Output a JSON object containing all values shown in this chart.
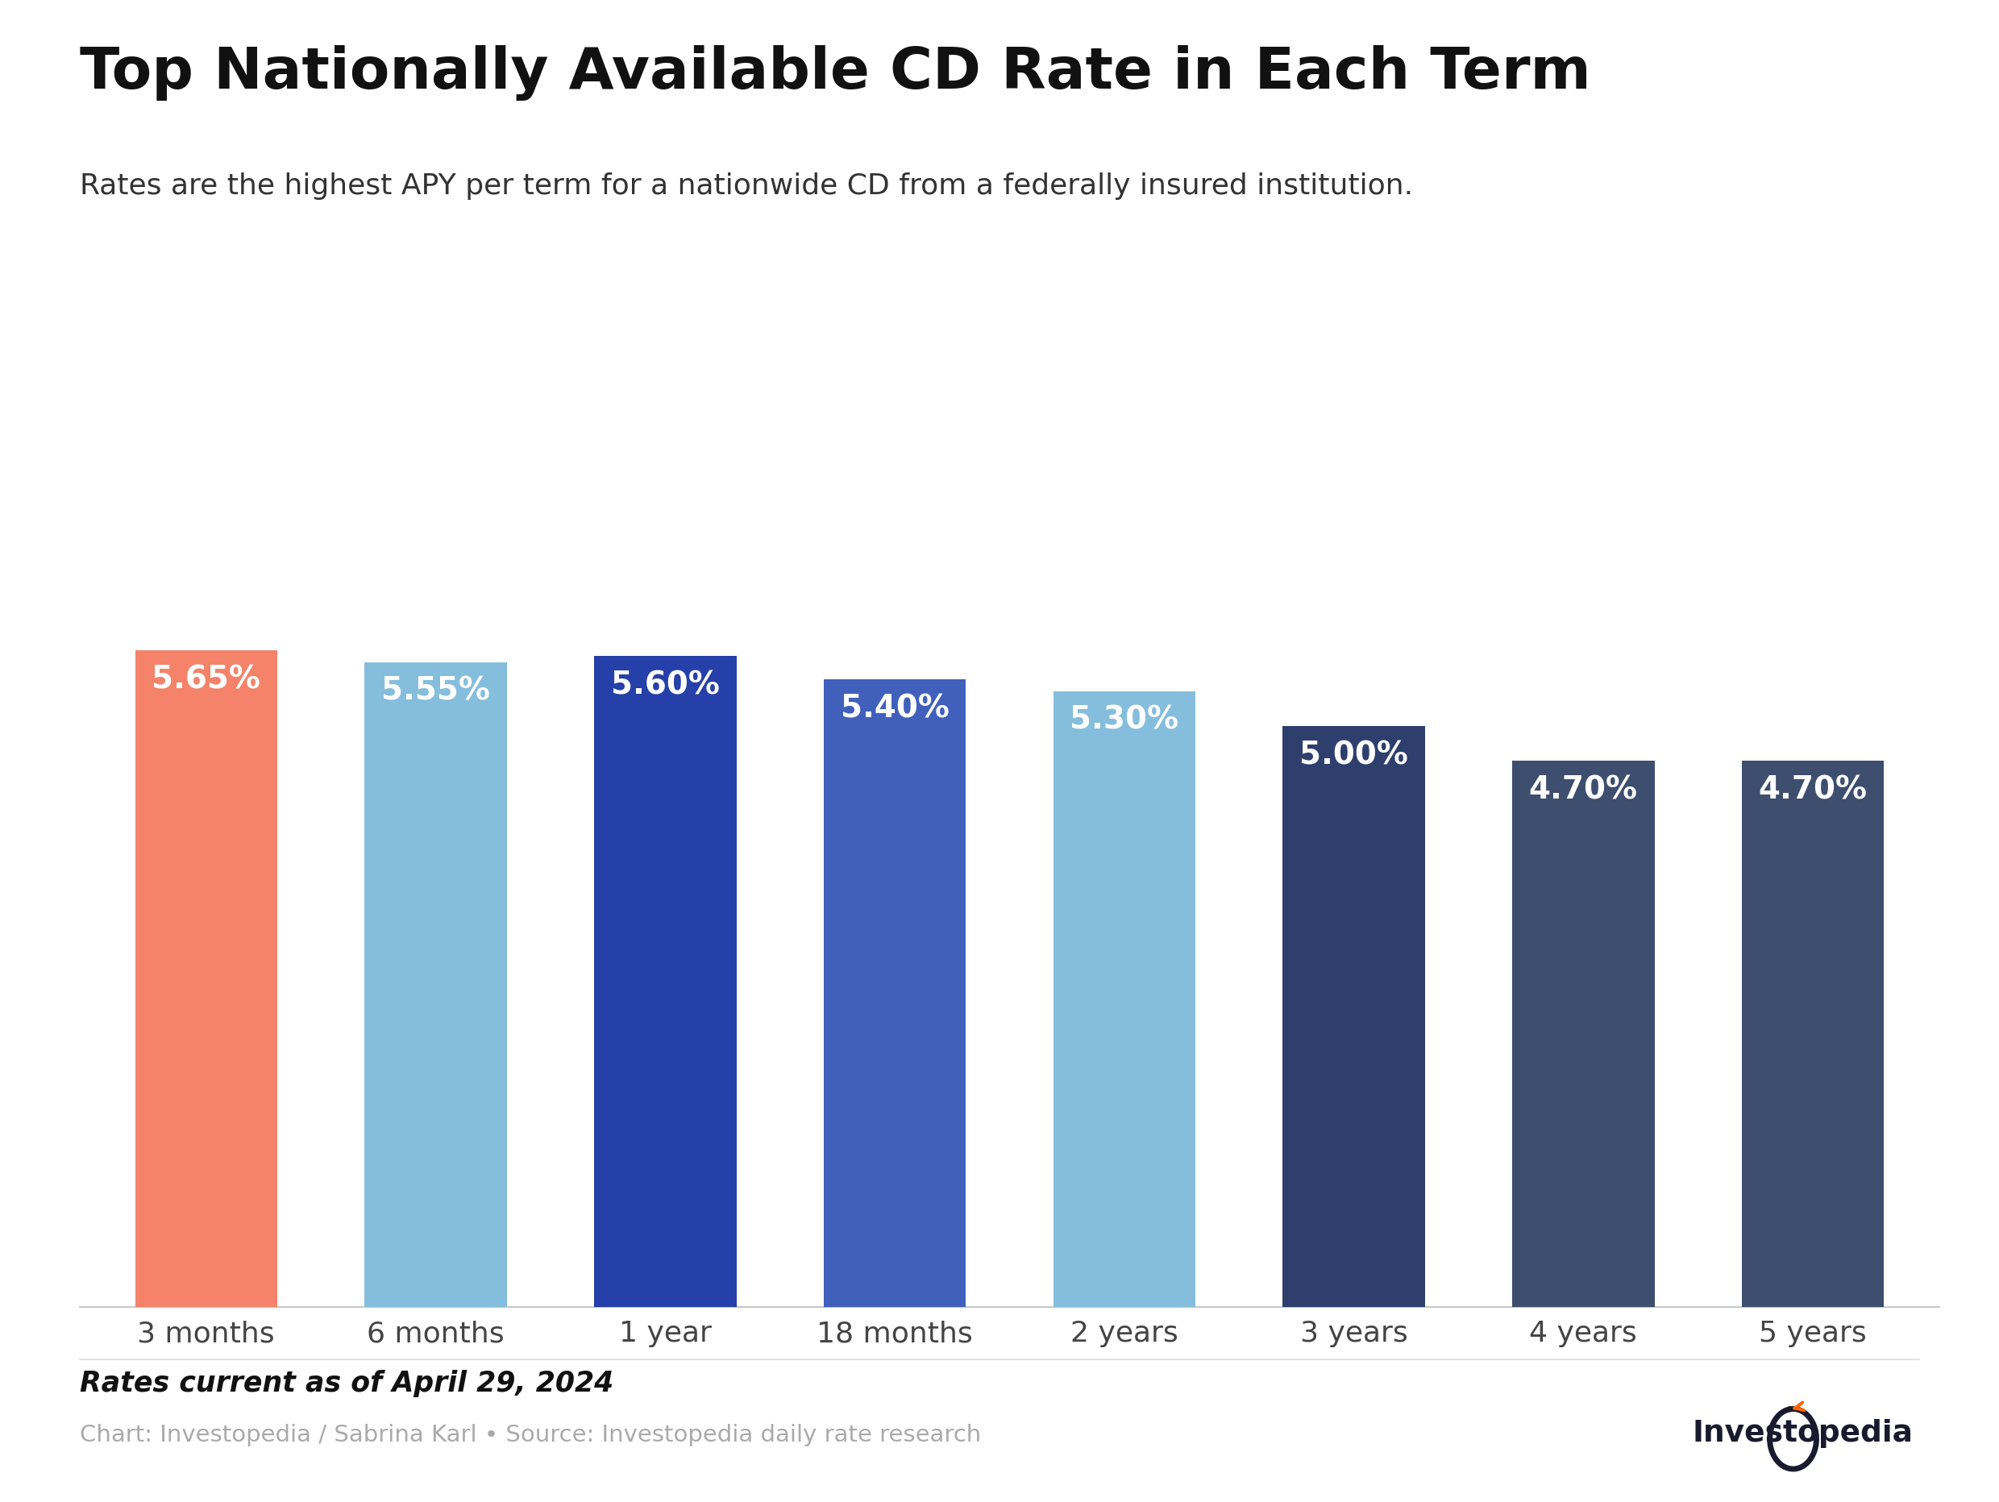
{
  "title": "Top Nationally Available CD Rate in Each Term",
  "subtitle": "Rates are the highest APY per term for a nationwide CD from a federally insured institution.",
  "categories": [
    "3 months",
    "6 months",
    "1 year",
    "18 months",
    "2 years",
    "3 years",
    "4 years",
    "5 years"
  ],
  "values": [
    5.65,
    5.55,
    5.6,
    5.4,
    5.3,
    5.0,
    4.7,
    4.7
  ],
  "labels": [
    "5.65%",
    "5.55%",
    "5.60%",
    "5.40%",
    "5.30%",
    "5.00%",
    "4.70%",
    "4.70%"
  ],
  "bar_colors": [
    "#F4836A",
    "#85BEDC",
    "#2540A8",
    "#4060BB",
    "#85BEDC",
    "#2E3F6E",
    "#3D4E6E",
    "#3D4E6E"
  ],
  "ylim": [
    0,
    7.5
  ],
  "background_color": "#ffffff",
  "title_fontsize": 52,
  "subtitle_fontsize": 26,
  "label_fontsize": 28,
  "tick_fontsize": 26,
  "footer_italic_text": "Rates current as of April 29, 2024",
  "footer_source_text": "Chart: Investopedia / Sabrina Karl • Source: Investopedia daily rate research"
}
